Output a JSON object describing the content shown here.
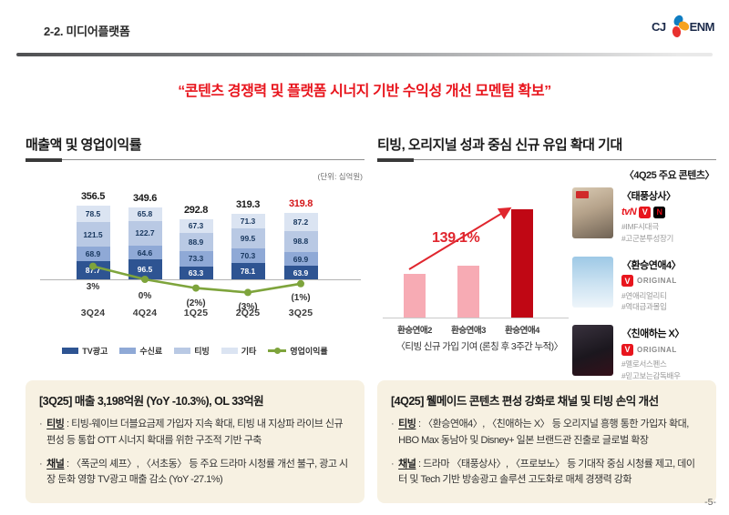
{
  "header": {
    "section_label": "2-2. 미디어플랫폼",
    "logo_cj": "CJ",
    "logo_enm": "ENM"
  },
  "headline": "“콘텐츠 경쟁력 및 플랫폼 시너지 기반 수익성 개선 모멘텀 확보”",
  "colors": {
    "accent_red": "#e8151d",
    "highlight_total_red": "#d41619",
    "line_green": "#7ea43c",
    "bar_pink": "#f7abb4",
    "bar_dark_red": "#c00714",
    "note_box_bg": "#f7f1e2"
  },
  "left_panel": {
    "title": "매출액 및 영업이익률",
    "unit_note": "(단위: 십억원)"
  },
  "right_panel": {
    "title": "티빙, 오리지널 성과 중심 신규 유입 확대 기대",
    "contents_header": "〈4Q25 주요 콘텐츠〉",
    "contents": [
      {
        "title": "〈태풍상사〉",
        "platforms": [
          "tvN",
          "TVING",
          "Netflix"
        ],
        "tags": [
          "#IMF시대극",
          "#고군분투성장기"
        ]
      },
      {
        "title": "〈환승연애4〉",
        "platforms": [
          "TVING ORIGINAL"
        ],
        "tags": [
          "#연애리얼리티",
          "#역대급과몰입"
        ]
      },
      {
        "title": "〈친애하는 X〉",
        "platforms": [
          "TVING ORIGINAL"
        ],
        "tags": [
          "#멜로서스펜스",
          "#믿고보는감독배우"
        ]
      }
    ]
  },
  "chart_data": [
    {
      "type": "bar",
      "subtype": "stacked-columns-with-line",
      "title": "매출액 및 영업이익률",
      "unit": "십억원 (billion KRW)",
      "categories": [
        "3Q24",
        "4Q24",
        "1Q25",
        "2Q25",
        "3Q25"
      ],
      "series": [
        {
          "name": "TV광고",
          "color": "#2e5492",
          "values": [
            87.7,
            96.5,
            63.3,
            78.1,
            63.9
          ]
        },
        {
          "name": "수신료",
          "color": "#8fa9d6",
          "values": [
            68.9,
            64.6,
            73.3,
            70.3,
            69.9
          ]
        },
        {
          "name": "티빙",
          "color": "#b9c9e4",
          "values": [
            121.5,
            122.7,
            88.9,
            99.5,
            98.8
          ]
        },
        {
          "name": "기타",
          "color": "#dbe4f2",
          "values": [
            78.5,
            65.8,
            67.3,
            71.3,
            87.2
          ]
        }
      ],
      "totals": [
        "356.5",
        "349.6",
        "292.8",
        "319.3",
        "319.8"
      ],
      "highlight_last_total": true,
      "line": {
        "name": "영업이익률",
        "color": "#7ea43c",
        "values_pct": [
          3,
          0,
          -2,
          -3,
          -1
        ],
        "labels": [
          "3%",
          "0%",
          "(2%)",
          "(3%)",
          "(1%)"
        ]
      },
      "legend_position": "bottom"
    },
    {
      "type": "bar",
      "categories": [
        "환승연애2",
        "환승연애3",
        "환승연애4"
      ],
      "values": [
        40,
        48,
        100
      ],
      "unit": "relative index (환승연애4 = 100, estimated from bar heights)",
      "colors": [
        "#f7abb4",
        "#f7abb4",
        "#c00714"
      ],
      "annotation": "139.1%",
      "caption": "〈티빙 신규 가입 기여 (론칭 후 3주간 누적)〉"
    }
  ],
  "left_note": {
    "title": "[3Q25] 매출 3,198억원 (YoY -10.3%), OL 33억원",
    "bullets": [
      {
        "keyword": "티빙",
        "text": ": 티빙-웨이브 더블요금제 가입자 지속 확대, 티빙 내 지상파 라이브 신규 편성 등 통합 OTT 시너지 확대를 위한 구조적 기반 구축"
      },
      {
        "keyword": "채널",
        "text": ": 〈폭군의 셰프〉, 〈서초동〉 등 주요 드라마 시청률 개선 불구, 광고 시장 둔화 영향 TV광고 매출 감소 (YoY -27.1%)"
      }
    ]
  },
  "right_note": {
    "title": "[4Q25] 웰메이드 콘텐츠 편성 강화로 채널 및 티빙 손익 개선",
    "bullets": [
      {
        "keyword": "티빙",
        "text": ": 〈환승연애4〉, 〈친애하는 X〉 등 오리지널 흥행 통한 가입자 확대, HBO Max 동남아 및 Disney+ 일본 브랜드관 진출로 글로벌 확장"
      },
      {
        "keyword": "채널",
        "text": ": 드라마 〈태풍상사〉, 〈프로보노〉 등 기대작 중심 시청률 제고, 데이터 및 Tech 기반 방송광고 솔루션 고도화로 매체 경쟁력 강화"
      }
    ]
  },
  "footer": {
    "page_number": "-5-"
  }
}
